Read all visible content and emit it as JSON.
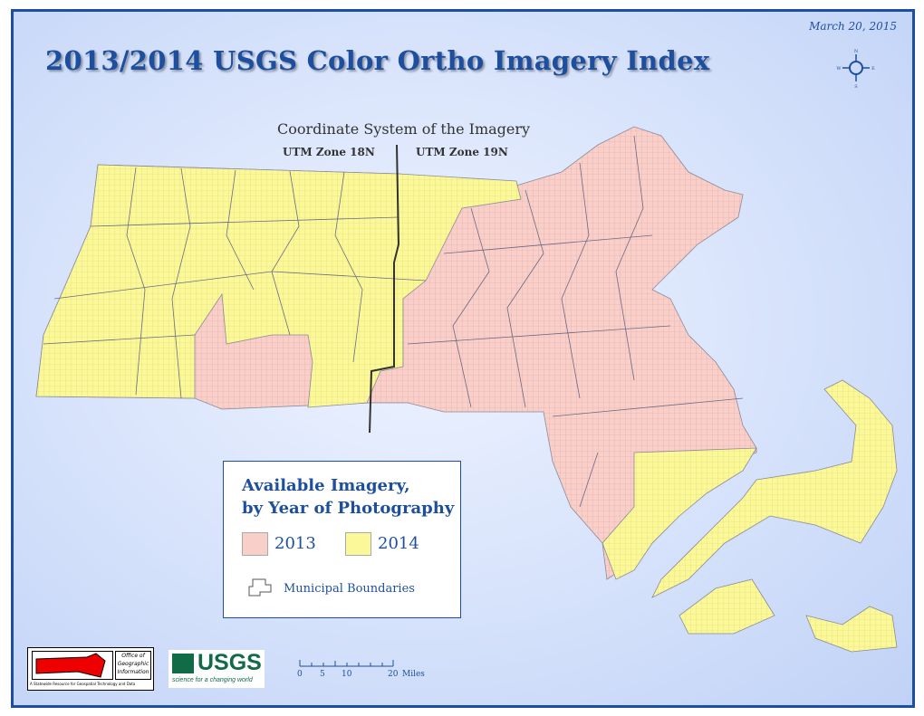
{
  "title": "2013/2014 USGS Color Ortho Imagery Index",
  "date": "March 20, 2015",
  "compass": {
    "n": "N",
    "s": "S",
    "e": "E",
    "w": "W"
  },
  "coordinate_system": {
    "title": "Coordinate System of the Imagery",
    "zone_west": "UTM Zone 18N",
    "zone_east": "UTM Zone 19N"
  },
  "legend": {
    "title_line1": "Available Imagery,",
    "title_line2": "by Year of Photography",
    "items": [
      {
        "label": "2013",
        "color": "#f9cfc9"
      },
      {
        "label": "2014",
        "color": "#fbf89a"
      }
    ],
    "municipal_label": "Municipal Boundaries"
  },
  "logos": {
    "massgis_text": "MASS GIS",
    "massgis_office": "Office of Geographic Information",
    "massgis_tagline": "A Statewide Resource for Geospatial Technology and Data",
    "usgs_text": "USGS",
    "usgs_tagline": "science for a changing world"
  },
  "scale_bar": {
    "ticks": [
      "0",
      "5",
      "10",
      "20"
    ],
    "unit": "Miles"
  },
  "colors": {
    "frame": "#1d4f9e",
    "imagery_2013": "#f9cfc9",
    "imagery_2014": "#fbf89a",
    "grid_line_2013": "#e8a39c",
    "grid_line_2014": "#e0d86a"
  }
}
